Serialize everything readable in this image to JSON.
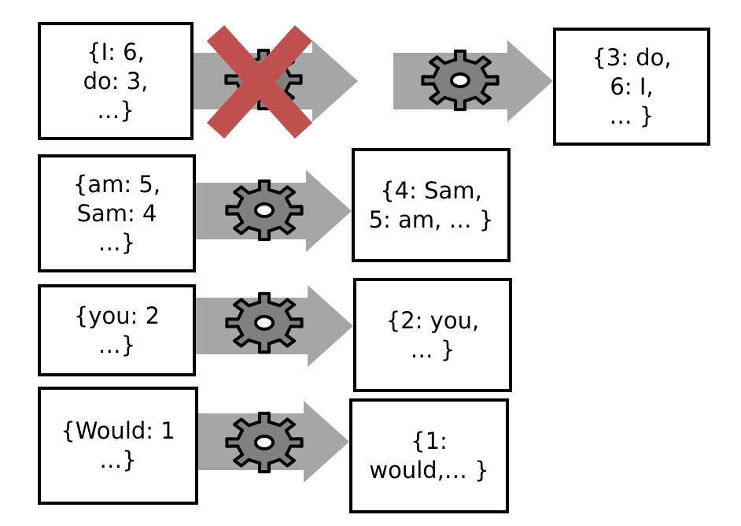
{
  "colors": {
    "arrow": "#a6a6a6",
    "gear_fill": "#808080",
    "gear_stroke": "#000000",
    "cross": "#c0504d"
  },
  "icons": {
    "gear": "gear-icon",
    "cross": "cross-icon"
  },
  "rows": [
    {
      "input_lines": [
        "{I: 6,",
        "do: 3,",
        "…}"
      ],
      "output_lines": [
        "{3: do,",
        "6: I,",
        "… }"
      ],
      "failed": true
    },
    {
      "input_lines": [
        "{am: 5,",
        "Sam: 4",
        "…}"
      ],
      "output_lines": [
        "{4: Sam,",
        "5: am, … }"
      ],
      "failed": false
    },
    {
      "input_lines": [
        "{you: 2",
        "…}"
      ],
      "output_lines": [
        "{2: you,",
        "… }"
      ],
      "failed": false
    },
    {
      "input_lines": [
        "{Would: 1",
        "…}"
      ],
      "output_lines": [
        "{1:",
        "would,… }"
      ],
      "failed": false
    }
  ]
}
